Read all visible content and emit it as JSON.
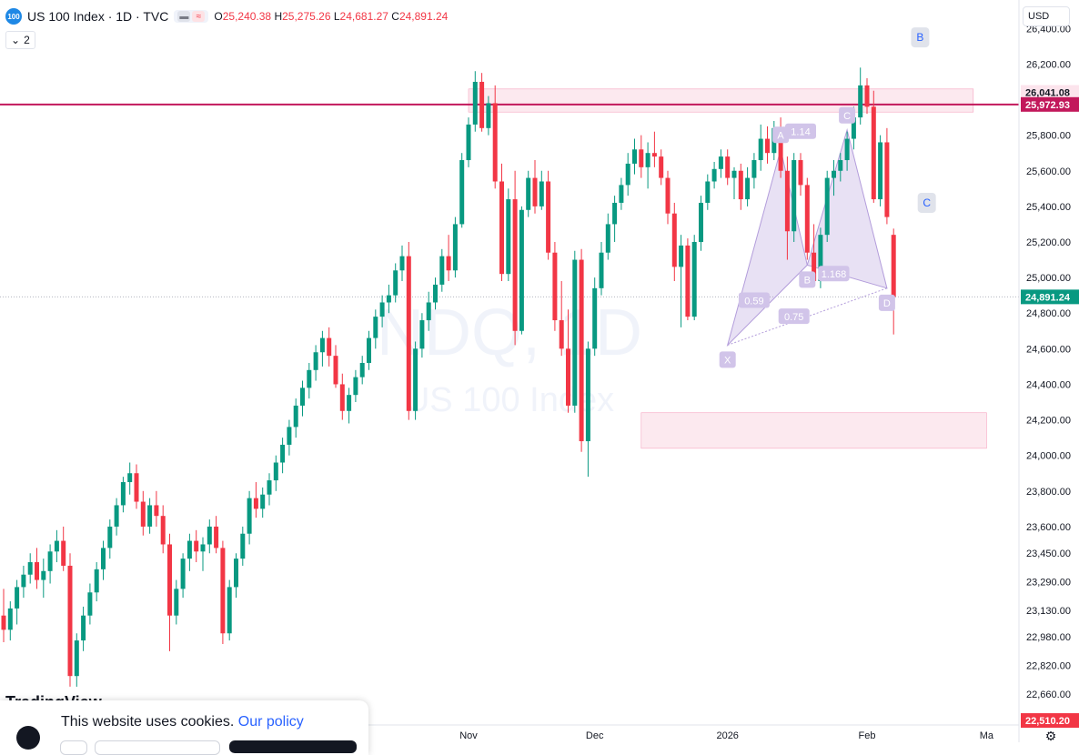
{
  "header": {
    "logo_text": "100",
    "symbol_line": "US 100 Index · 1D · TVC",
    "open_label": "O",
    "open": "25,240.38",
    "high_label": "H",
    "high": "25,275.26",
    "low_label": "L",
    "low": "24,681.27",
    "close_label": "C",
    "close": "24,891.24"
  },
  "indicators_toggle": {
    "label": "2"
  },
  "currency_select": {
    "value": "USD"
  },
  "watermark": {
    "symbol": "NDQ, 1D",
    "name": "US 100 Index"
  },
  "cookie_banner": {
    "text": "This website uses cookies.",
    "link": "Our policy",
    "brand": "TradingView"
  },
  "chart_data": {
    "type": "candlestick",
    "y_ticks": [
      22660,
      22820,
      22980,
      23130,
      23290,
      23450,
      23600,
      23800,
      24000,
      24200,
      24400,
      24600,
      24800,
      25000,
      25200,
      25400,
      25600,
      25800,
      26000,
      26200,
      26400
    ],
    "ylim": [
      22490,
      26560
    ],
    "x_labels": [
      {
        "label": "Nov",
        "index": 70
      },
      {
        "label": "Dec",
        "index": 89
      },
      {
        "label": "2026",
        "index": 109
      },
      {
        "label": "Feb",
        "index": 130
      },
      {
        "label": "Ma",
        "index": 148
      }
    ],
    "price_labels": [
      {
        "value": 26041.08,
        "text": "26,041.08",
        "color": "#fce4ec",
        "text_color": "#131722"
      },
      {
        "value": 25972.93,
        "text": "25,972.93",
        "color": "#c2185b",
        "text_color": "#ffffff"
      },
      {
        "value": 24891.24,
        "text": "24,891.24",
        "color": "#089981",
        "text_color": "#ffffff"
      },
      {
        "value": 22510.2,
        "text": "22,510.20",
        "color": "#f23645",
        "text_color": "#ffffff"
      }
    ],
    "horizontal_lines": [
      {
        "value": 25972.93,
        "color": "#c2185b",
        "style": "solid"
      },
      {
        "value": 24891.24,
        "color": "#b2b5be",
        "style": "dotted"
      }
    ],
    "zones": [
      {
        "from_index": 70,
        "to_index": 146,
        "low": 25930,
        "high": 26060,
        "color": "#fce4ec"
      },
      {
        "from_index": 96,
        "to_index": 148,
        "low": 24040,
        "high": 24240,
        "color": "#fce4ec"
      }
    ],
    "colors": {
      "up": "#089981",
      "down": "#f23645"
    },
    "candles": [
      [
        23100,
        23250,
        22950,
        23020
      ],
      [
        23020,
        23180,
        22960,
        23140
      ],
      [
        23140,
        23300,
        23050,
        23260
      ],
      [
        23260,
        23380,
        23200,
        23330
      ],
      [
        23330,
        23450,
        23280,
        23400
      ],
      [
        23400,
        23480,
        23250,
        23300
      ],
      [
        23300,
        23420,
        23200,
        23350
      ],
      [
        23350,
        23500,
        23280,
        23460
      ],
      [
        23460,
        23580,
        23400,
        23520
      ],
      [
        23520,
        23600,
        23350,
        23380
      ],
      [
        23380,
        23450,
        22700,
        22760
      ],
      [
        22760,
        23000,
        22700,
        22960
      ],
      [
        22960,
        23150,
        22900,
        23100
      ],
      [
        23100,
        23280,
        23050,
        23230
      ],
      [
        23230,
        23400,
        23180,
        23360
      ],
      [
        23360,
        23520,
        23300,
        23480
      ],
      [
        23480,
        23640,
        23420,
        23600
      ],
      [
        23600,
        23760,
        23550,
        23720
      ],
      [
        23720,
        23880,
        23680,
        23850
      ],
      [
        23850,
        23960,
        23780,
        23900
      ],
      [
        23900,
        23950,
        23700,
        23740
      ],
      [
        23740,
        23800,
        23550,
        23600
      ],
      [
        23600,
        23760,
        23560,
        23720
      ],
      [
        23720,
        23800,
        23600,
        23660
      ],
      [
        23660,
        23720,
        23450,
        23500
      ],
      [
        23500,
        23560,
        22900,
        23100
      ],
      [
        23100,
        23300,
        23050,
        23250
      ],
      [
        23250,
        23450,
        23200,
        23420
      ],
      [
        23420,
        23560,
        23350,
        23520
      ],
      [
        23520,
        23580,
        23400,
        23460
      ],
      [
        23460,
        23540,
        23350,
        23500
      ],
      [
        23500,
        23640,
        23450,
        23600
      ],
      [
        23600,
        23660,
        23450,
        23480
      ],
      [
        23480,
        23520,
        22940,
        23000
      ],
      [
        23000,
        23300,
        22960,
        23260
      ],
      [
        23260,
        23450,
        23200,
        23420
      ],
      [
        23420,
        23600,
        23380,
        23560
      ],
      [
        23560,
        23800,
        23500,
        23760
      ],
      [
        23760,
        23850,
        23650,
        23700
      ],
      [
        23700,
        23820,
        23650,
        23780
      ],
      [
        23780,
        23900,
        23720,
        23860
      ],
      [
        23860,
        24000,
        23800,
        23960
      ],
      [
        23960,
        24100,
        23900,
        24060
      ],
      [
        24060,
        24200,
        24000,
        24160
      ],
      [
        24160,
        24320,
        24100,
        24280
      ],
      [
        24280,
        24420,
        24220,
        24380
      ],
      [
        24380,
        24520,
        24320,
        24480
      ],
      [
        24480,
        24620,
        24420,
        24580
      ],
      [
        24580,
        24700,
        24500,
        24660
      ],
      [
        24660,
        24720,
        24500,
        24560
      ],
      [
        24560,
        24620,
        24380,
        24400
      ],
      [
        24400,
        24460,
        24200,
        24250
      ],
      [
        24250,
        24380,
        24180,
        24340
      ],
      [
        24340,
        24480,
        24300,
        24440
      ],
      [
        24440,
        24560,
        24400,
        24520
      ],
      [
        24520,
        24700,
        24480,
        24660
      ],
      [
        24660,
        24820,
        24600,
        24780
      ],
      [
        24780,
        24900,
        24720,
        24860
      ],
      [
        24860,
        24960,
        24800,
        24900
      ],
      [
        24900,
        25080,
        24860,
        25040
      ],
      [
        25040,
        25180,
        24980,
        25120
      ],
      [
        25120,
        25200,
        24200,
        24250
      ],
      [
        24250,
        24640,
        24200,
        24600
      ],
      [
        24600,
        24800,
        24550,
        24760
      ],
      [
        24760,
        24920,
        24700,
        24860
      ],
      [
        24860,
        25000,
        24820,
        24960
      ],
      [
        24960,
        25160,
        24920,
        25120
      ],
      [
        25120,
        25240,
        24980,
        25040
      ],
      [
        25040,
        25340,
        25000,
        25300
      ],
      [
        25300,
        25700,
        25280,
        25660
      ],
      [
        25660,
        25900,
        25620,
        25860
      ],
      [
        25860,
        26160,
        25820,
        26100
      ],
      [
        26100,
        26150,
        25820,
        25840
      ],
      [
        25840,
        26020,
        25800,
        25980
      ],
      [
        25980,
        26080,
        25500,
        25540
      ],
      [
        25540,
        25640,
        24980,
        25020
      ],
      [
        25020,
        25500,
        24980,
        25440
      ],
      [
        25440,
        25600,
        24620,
        24700
      ],
      [
        24700,
        25400,
        24680,
        25380
      ],
      [
        25380,
        25600,
        25340,
        25560
      ],
      [
        25560,
        25660,
        25360,
        25400
      ],
      [
        25400,
        25600,
        25380,
        25540
      ],
      [
        25540,
        25600,
        25100,
        25140
      ],
      [
        25140,
        25200,
        24700,
        24760
      ],
      [
        24760,
        24980,
        24560,
        24600
      ],
      [
        24600,
        24820,
        24240,
        24280
      ],
      [
        24280,
        25150,
        24240,
        25100
      ],
      [
        25100,
        25160,
        24020,
        24080
      ],
      [
        24080,
        24640,
        23880,
        24600
      ],
      [
        24600,
        25000,
        24560,
        24940
      ],
      [
        24940,
        25200,
        24900,
        25140
      ],
      [
        25140,
        25360,
        25100,
        25300
      ],
      [
        25300,
        25460,
        25200,
        25420
      ],
      [
        25420,
        25560,
        25380,
        25520
      ],
      [
        25520,
        25700,
        25460,
        25640
      ],
      [
        25640,
        25780,
        25580,
        25720
      ],
      [
        25720,
        25800,
        25560,
        25620
      ],
      [
        25620,
        25760,
        25500,
        25700
      ],
      [
        25700,
        25820,
        25620,
        25680
      ],
      [
        25680,
        25720,
        25520,
        25560
      ],
      [
        25560,
        25600,
        25300,
        25360
      ],
      [
        25360,
        25420,
        24980,
        25060
      ],
      [
        25060,
        25240,
        24720,
        25180
      ],
      [
        25180,
        25220,
        24760,
        24780
      ],
      [
        24780,
        25240,
        24760,
        25200
      ],
      [
        25200,
        25460,
        25150,
        25420
      ],
      [
        25420,
        25580,
        25380,
        25540
      ],
      [
        25540,
        25650,
        25500,
        25610
      ],
      [
        25610,
        25720,
        25560,
        25680
      ],
      [
        25680,
        25720,
        25520,
        25560
      ],
      [
        25560,
        25620,
        25440,
        25600
      ],
      [
        25600,
        25640,
        25380,
        25440
      ],
      [
        25440,
        25620,
        25400,
        25560
      ],
      [
        25560,
        25700,
        25500,
        25660
      ],
      [
        25660,
        25860,
        25600,
        25780
      ],
      [
        25780,
        25850,
        25640,
        25700
      ],
      [
        25700,
        25880,
        25660,
        25840
      ],
      [
        25840,
        25900,
        25560,
        25600
      ],
      [
        25600,
        25680,
        25100,
        25260
      ],
      [
        25260,
        25700,
        25200,
        25660
      ],
      [
        25660,
        25700,
        25460,
        25520
      ],
      [
        25520,
        25560,
        25100,
        25140
      ],
      [
        25140,
        25300,
        24960,
        24980
      ],
      [
        24980,
        25280,
        24940,
        25240
      ],
      [
        25240,
        25600,
        25200,
        25560
      ],
      [
        25560,
        25660,
        25460,
        25600
      ],
      [
        25600,
        25700,
        25540,
        25660
      ],
      [
        25660,
        25820,
        25600,
        25780
      ],
      [
        25780,
        25960,
        25720,
        25900
      ],
      [
        25900,
        26180,
        25860,
        26080
      ],
      [
        26080,
        26120,
        25920,
        25960
      ],
      [
        25960,
        26050,
        25420,
        25440
      ],
      [
        25440,
        25800,
        25400,
        25760
      ],
      [
        25760,
        25840,
        25300,
        25340
      ],
      [
        25240,
        25275,
        24680,
        24891
      ]
    ],
    "harmonic_pattern": {
      "points": [
        {
          "label": "X",
          "index": 109,
          "value": 24620
        },
        {
          "label": "A",
          "index": 117,
          "value": 25720
        },
        {
          "label": "B",
          "index": 121,
          "value": 25070
        },
        {
          "label": "C",
          "index": 127,
          "value": 25830
        },
        {
          "label": "D",
          "index": 133,
          "value": 24940
        }
      ],
      "ratios": [
        {
          "label": "1.14",
          "value": 25820,
          "index": 120
        },
        {
          "label": "0.59",
          "value": 24870,
          "index": 113
        },
        {
          "label": "1.168",
          "value": 25020,
          "index": 125
        },
        {
          "label": "0.75",
          "value": 24780,
          "index": 119
        }
      ],
      "abc_labels": [
        {
          "label": "B",
          "index": 138,
          "value": 26350
        },
        {
          "label": "C",
          "index": 139,
          "value": 25420
        }
      ]
    }
  }
}
